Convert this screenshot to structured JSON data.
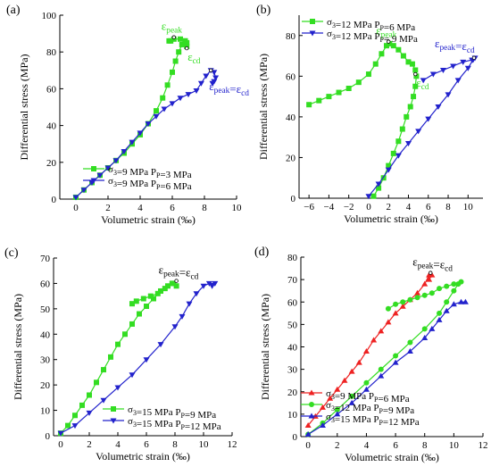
{
  "colors": {
    "green": "#33dd22",
    "blue": "#2222cc",
    "red": "#ee2222",
    "axis": "#000000"
  },
  "chart_data": [
    {
      "panel_label": "(a)",
      "type": "line",
      "xlabel": "Volumetric strain (‰)",
      "ylabel": "Differential stress (MPa)",
      "xlim": [
        -1,
        10
      ],
      "ylim": [
        0,
        100
      ],
      "xticks": [
        0,
        2,
        4,
        6,
        8,
        10
      ],
      "yticks": [
        0,
        20,
        40,
        60,
        80,
        100
      ],
      "legend_position": "bottom-right",
      "series": [
        {
          "name": "σ3=9 MPa PP=3 MPa",
          "color": "green",
          "marker": "square",
          "x": [
            0,
            0.5,
            1,
            1.5,
            2,
            2.5,
            3,
            3.5,
            4,
            4.5,
            5,
            5.4,
            5.7,
            6.0,
            6.2,
            6.4,
            6.6,
            6.8,
            6.9,
            6.9,
            6.8,
            6.5,
            6.1,
            5.9,
            5.8
          ],
          "y": [
            1,
            5,
            9,
            13,
            17,
            21,
            25,
            30,
            35,
            41,
            48,
            55,
            62,
            69,
            75,
            80,
            84,
            86,
            85,
            83,
            86,
            87,
            87,
            86,
            86
          ]
        },
        {
          "name": "σ3=9 MPa PP=6 MPa",
          "color": "blue",
          "marker": "triangle-down",
          "x": [
            0,
            0.5,
            1,
            1.5,
            2,
            2.5,
            3,
            3.5,
            4,
            4.5,
            5,
            5.5,
            6,
            6.5,
            7,
            7.5,
            7.8,
            8.1,
            8.4,
            8.6,
            8.7,
            8.6,
            8.5
          ],
          "y": [
            1,
            5,
            9,
            13,
            17,
            21,
            26,
            31,
            36,
            41,
            45,
            49,
            52,
            55,
            57,
            59,
            63,
            67,
            70,
            69,
            66,
            64,
            63
          ]
        }
      ],
      "annotations": [
        {
          "text": "εpeak",
          "color": "green",
          "at": [
            6.1,
            88
          ]
        },
        {
          "text": "εcd",
          "color": "green",
          "at": [
            6.9,
            82
          ]
        },
        {
          "text": "εpeak=εcd",
          "color": "blue",
          "at": [
            8.4,
            70
          ]
        }
      ]
    },
    {
      "panel_label": "(b)",
      "type": "line",
      "xlabel": "Volumetric strain (‰)",
      "ylabel": "Differential stress (MPa)",
      "xlim": [
        -7,
        11.5
      ],
      "ylim": [
        0,
        90
      ],
      "xticks": [
        -6,
        -4,
        -2,
        0,
        2,
        4,
        6,
        8,
        10
      ],
      "yticks": [
        0,
        20,
        40,
        60,
        80
      ],
      "legend_position": "top-left",
      "series": [
        {
          "name": "σ3=12 MPa PP=6 MPa",
          "color": "green",
          "marker": "square",
          "x": [
            -6,
            -5,
            -4,
            -3,
            -2,
            -1,
            0,
            0.7,
            1.3,
            1.8,
            2.1,
            2.5,
            3.0,
            3.5,
            4.0,
            4.4,
            4.7,
            4.8,
            4.7,
            4.5,
            4.2,
            3.8,
            3.4,
            3.0,
            2.5,
            2.0,
            1.5,
            1.0,
            0.5
          ],
          "y": [
            46,
            48,
            50,
            52,
            54,
            57,
            61,
            66,
            71,
            75,
            76,
            75,
            73,
            70,
            67,
            66,
            63,
            60,
            55,
            50,
            45,
            40,
            34,
            28,
            22,
            16,
            10,
            5,
            1
          ]
        },
        {
          "name": "σ3=12 MPa PP= 9 MPa",
          "color": "blue",
          "marker": "triangle-down",
          "x": [
            0,
            1,
            2,
            3,
            4,
            5,
            6,
            7,
            8,
            9,
            10,
            10.5,
            10.7,
            10.4,
            9.5,
            8.5,
            7.5,
            6.5,
            5.5
          ],
          "y": [
            1,
            7,
            14,
            21,
            27,
            33,
            39,
            45,
            51,
            58,
            64,
            68,
            69,
            68,
            67,
            65,
            63,
            61,
            58
          ]
        }
      ],
      "annotations": [
        {
          "text": "εpeak",
          "color": "green",
          "at": [
            2.0,
            77
          ]
        },
        {
          "text": "εcd",
          "color": "green",
          "at": [
            4.7,
            61
          ]
        },
        {
          "text": "εpeak=εcd",
          "color": "blue",
          "at": [
            10.6,
            69
          ]
        }
      ]
    },
    {
      "panel_label": "(c)",
      "type": "line",
      "xlabel": "Volumetric strain (‰)",
      "ylabel": "Differential stress (MPa)",
      "xlim": [
        -0.5,
        12
      ],
      "ylim": [
        0,
        70
      ],
      "xticks": [
        0,
        2,
        4,
        6,
        8,
        10,
        12
      ],
      "yticks": [
        0,
        10,
        20,
        30,
        40,
        50,
        60,
        70
      ],
      "legend_position": "bottom-right",
      "series": [
        {
          "name": "σ3=15 MPa PP=9 MPa",
          "color": "green",
          "marker": "square",
          "x": [
            0,
            0.5,
            1,
            1.5,
            2,
            2.5,
            3,
            3.5,
            4,
            4.5,
            5,
            5.5,
            6,
            6.5,
            7,
            7.5,
            7.9,
            8.1,
            7.8,
            7.3,
            6.8,
            6.3,
            5.8,
            5.3,
            5.0
          ],
          "y": [
            1,
            4,
            8,
            12,
            16,
            21,
            26,
            31,
            36,
            40,
            44,
            48,
            51,
            54,
            57,
            59,
            60,
            59,
            60,
            58,
            56,
            55,
            54,
            53,
            52
          ]
        },
        {
          "name": "σ3=15 MPa PP=12 MPa",
          "color": "blue",
          "marker": "triangle-down",
          "x": [
            0,
            1,
            2,
            3,
            4,
            5,
            6,
            7,
            8,
            8.5,
            9,
            9.5,
            10,
            10.4,
            10.8,
            10.6
          ],
          "y": [
            1,
            4,
            9,
            14,
            19,
            24,
            30,
            36,
            43,
            47,
            52,
            56,
            59,
            60,
            60,
            59
          ]
        }
      ],
      "annotations": [
        {
          "text": "εpeak=εcd",
          "color": "black",
          "at": [
            8.1,
            61
          ]
        }
      ]
    },
    {
      "panel_label": "(d)",
      "type": "line",
      "xlabel": "Volumetric strain (‰)",
      "ylabel": "Differential stress (MPa)",
      "xlim": [
        -0.5,
        12
      ],
      "ylim": [
        0,
        80
      ],
      "xticks": [
        0,
        2,
        4,
        6,
        8,
        10,
        12
      ],
      "yticks": [
        0,
        10,
        20,
        30,
        40,
        50,
        60,
        70,
        80
      ],
      "legend_position": "bottom-right",
      "series": [
        {
          "name": "σ3=9 MPa PP=6 MPa",
          "color": "red",
          "marker": "triangle-up",
          "x": [
            0,
            0.5,
            1,
            1.5,
            2,
            2.5,
            3,
            3.5,
            4,
            4.5,
            5,
            5.5,
            6,
            6.5,
            7,
            7.5,
            8,
            8.3,
            8.5,
            8.3
          ],
          "y": [
            5,
            9,
            13,
            17,
            21,
            25,
            29,
            33,
            38,
            43,
            47,
            51,
            55,
            58,
            61,
            64,
            68,
            72,
            72,
            70
          ]
        },
        {
          "name": "σ3=12 MPa PP=9 MPa",
          "color": "green",
          "marker": "circle",
          "x": [
            0,
            1,
            2,
            3,
            4,
            5,
            6,
            7,
            8,
            9,
            9.5,
            10,
            10.3,
            10.5,
            10.0,
            9.5,
            9.0,
            8.5,
            8.0,
            7.5,
            7.0,
            6.5,
            6.0,
            5.5
          ],
          "y": [
            1,
            6,
            12,
            18,
            24,
            30,
            36,
            42,
            48,
            55,
            60,
            65,
            68,
            69,
            68,
            67,
            66,
            64,
            63,
            62,
            61,
            60,
            59,
            57
          ]
        },
        {
          "name": "σ3=15 MPa PP=12 MPa",
          "color": "blue",
          "marker": "triangle-up",
          "x": [
            0,
            1,
            2,
            3,
            4,
            5,
            6,
            7,
            8,
            8.5,
            9,
            9.5,
            10,
            10.5,
            10.8
          ],
          "y": [
            1,
            5,
            10,
            15,
            21,
            27,
            33,
            38,
            44,
            48,
            52,
            56,
            59,
            60,
            60
          ]
        }
      ],
      "annotations": [
        {
          "text": "εpeak=εcd",
          "color": "black",
          "at": [
            8.4,
            73
          ]
        }
      ]
    }
  ]
}
